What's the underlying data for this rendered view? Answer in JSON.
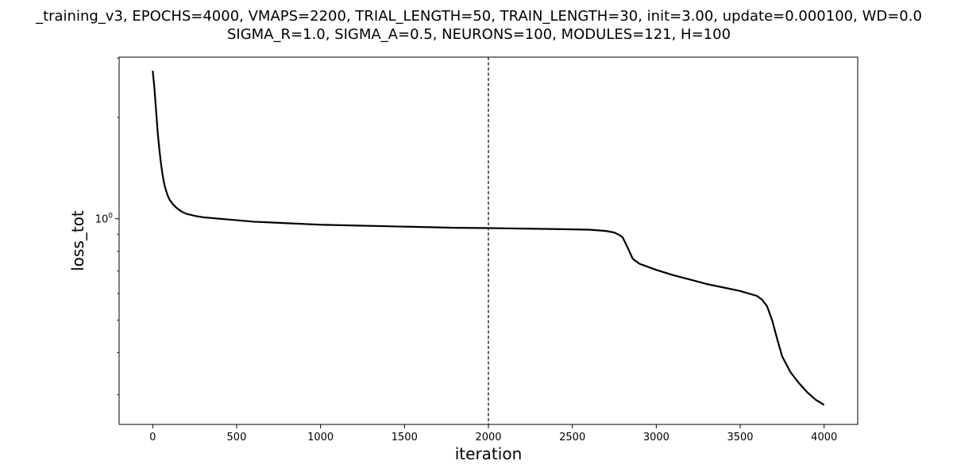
{
  "chart_data": {
    "type": "line",
    "title": "_training_v3, EPOCHS=4000, VMAPS=2200, TRIAL_LENGTH=50, TRAIN_LENGTH=30, init=3.00, update=0.000100, WD=0.0",
    "subtitle": "SIGMA_R=1.0, SIGMA_A=0.5, NEURONS=100, MODULES=121, H=100",
    "xlabel": "iteration",
    "ylabel": "loss_tot",
    "x_ticks": [
      0,
      500,
      1000,
      1500,
      2000,
      2500,
      3000,
      3500,
      4000
    ],
    "y_tick_label_base": "10",
    "y_tick_label_exp": "0",
    "y_scale": "log",
    "xlim": [
      -200,
      4200
    ],
    "ylim": [
      0.245,
      3.02
    ],
    "grid": false,
    "vline": {
      "x": 2000,
      "style": "dashed",
      "color": "#000000"
    },
    "series": [
      {
        "color": "#000000",
        "x": [
          0,
          10,
          20,
          30,
          40,
          50,
          60,
          70,
          80,
          90,
          100,
          120,
          140,
          160,
          180,
          200,
          250,
          300,
          350,
          400,
          450,
          500,
          600,
          700,
          800,
          900,
          1000,
          1200,
          1400,
          1600,
          1800,
          2000,
          2200,
          2400,
          2500,
          2600,
          2700,
          2750,
          2780,
          2800,
          2830,
          2860,
          2900,
          2950,
          3000,
          3100,
          3200,
          3300,
          3400,
          3500,
          3550,
          3600,
          3630,
          3660,
          3690,
          3720,
          3750,
          3800,
          3850,
          3900,
          3950,
          4000
        ],
        "y": [
          2.75,
          2.45,
          2.1,
          1.8,
          1.6,
          1.45,
          1.34,
          1.26,
          1.21,
          1.17,
          1.14,
          1.105,
          1.08,
          1.06,
          1.045,
          1.035,
          1.02,
          1.01,
          1.005,
          1.0,
          0.995,
          0.99,
          0.98,
          0.975,
          0.97,
          0.965,
          0.96,
          0.955,
          0.95,
          0.945,
          0.94,
          0.938,
          0.935,
          0.932,
          0.93,
          0.928,
          0.92,
          0.91,
          0.895,
          0.88,
          0.82,
          0.76,
          0.735,
          0.72,
          0.705,
          0.68,
          0.66,
          0.64,
          0.625,
          0.61,
          0.6,
          0.59,
          0.575,
          0.55,
          0.5,
          0.44,
          0.39,
          0.35,
          0.325,
          0.305,
          0.29,
          0.28
        ]
      }
    ]
  }
}
